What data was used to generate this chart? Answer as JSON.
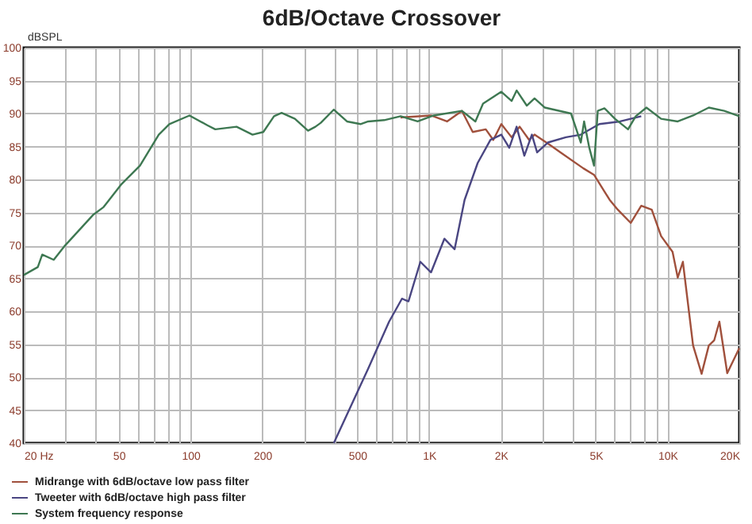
{
  "chart_data": {
    "type": "line",
    "title": "6dB/Octave Crossover",
    "ylabel": "dBSPL",
    "log": "x",
    "grid": true,
    "legend": "bottom",
    "marker": "none",
    "line_style": "solid",
    "xlim": [
      20,
      20000
    ],
    "ylim": [
      40,
      100
    ],
    "xticks": [
      {
        "value": 20,
        "label": "20 Hz"
      },
      {
        "value": 30,
        "label": null
      },
      {
        "value": 40,
        "label": null
      },
      50,
      {
        "value": 60,
        "label": null
      },
      {
        "value": 70,
        "label": null
      },
      {
        "value": 80,
        "label": null
      },
      {
        "value": 90,
        "label": null
      },
      100,
      200,
      {
        "value": 300,
        "label": null
      },
      {
        "value": 400,
        "label": null
      },
      500,
      {
        "value": 600,
        "label": null
      },
      {
        "value": 700,
        "label": null
      },
      {
        "value": 800,
        "label": null
      },
      {
        "value": 900,
        "label": null
      },
      {
        "value": 1000,
        "label": "1K"
      },
      {
        "value": 2000,
        "label": "2K"
      },
      {
        "value": 3000,
        "label": null
      },
      {
        "value": 4000,
        "label": null
      },
      {
        "value": 5000,
        "label": "5K"
      },
      {
        "value": 6000,
        "label": null
      },
      {
        "value": 7000,
        "label": null
      },
      {
        "value": 8000,
        "label": null
      },
      {
        "value": 9000,
        "label": null
      },
      {
        "value": 10000,
        "label": "10K"
      },
      {
        "value": 20000,
        "label": "20K"
      }
    ],
    "yticks": [
      40,
      45,
      50,
      55,
      60,
      65,
      70,
      75,
      80,
      85,
      90,
      95,
      100
    ],
    "series": [
      {
        "name": "Midrange with 6dB/octave low pass filter",
        "color": "#a0503c",
        "x": [
          760,
          1020,
          1190,
          1374,
          1525,
          1730,
          1860,
          2010,
          2220,
          2400,
          2630,
          2770,
          3220,
          3560,
          4430,
          4920,
          5720,
          6190,
          7010,
          7760,
          8590,
          9400,
          10500,
          11040,
          11600,
          12800,
          13900,
          14900,
          15700,
          16500,
          17800,
          20000
        ],
        "values": [
          89.4,
          89.7,
          88.8,
          90.4,
          87.2,
          87.6,
          86,
          88.4,
          86.4,
          88,
          86,
          86.8,
          85.2,
          84.1,
          81.7,
          80.7,
          76.9,
          75.4,
          73.4,
          76,
          75.4,
          71.4,
          69,
          65.1,
          67.5,
          54.8,
          50.5,
          54.8,
          55.6,
          58.4,
          50.6,
          54.4
        ]
      },
      {
        "name": "Tweeter with 6dB/octave high pass filter",
        "color": "#4a4682",
        "x": [
          399,
          556,
          680,
          770,
          820,
          920,
          1020,
          1160,
          1280,
          1410,
          1600,
          1810,
          2010,
          2170,
          2330,
          2510,
          2700,
          2840,
          3150,
          3750,
          4330,
          5180,
          6330,
          7760
        ],
        "values": [
          40,
          51.3,
          58.4,
          61.9,
          61.5,
          67.5,
          65.9,
          71,
          69.4,
          76.9,
          82.5,
          86,
          86.8,
          84.8,
          88,
          83.6,
          86.8,
          84.1,
          85.6,
          86.4,
          86.8,
          88.4,
          88.8,
          89.6
        ]
      },
      {
        "name": "System frequency response",
        "color": "#3e7852",
        "x": [
          20,
          22.9,
          23.9,
          26.7,
          29.5,
          39,
          43.2,
          51.4,
          61.4,
          73.6,
          81.5,
          99,
          118,
          127,
          156,
          182,
          202,
          224,
          241,
          274,
          311,
          334,
          352,
          399,
          453,
          516,
          556,
          649,
          760,
          896,
          1046,
          1374,
          1565,
          1685,
          2010,
          2220,
          2330,
          2570,
          2770,
          3060,
          3940,
          4330,
          4470,
          4700,
          4920,
          5100,
          5440,
          6020,
          6830,
          7360,
          8160,
          9400,
          11040,
          12800,
          14900,
          17300,
          20000
        ],
        "values": [
          65.5,
          66.7,
          68.6,
          67.8,
          69.8,
          74.6,
          75.8,
          79.3,
          82.1,
          86.8,
          88.4,
          89.7,
          88.2,
          87.6,
          88,
          86.8,
          87.2,
          89.6,
          90.1,
          89.2,
          87.4,
          88,
          88.6,
          90.6,
          88.8,
          88.4,
          88.8,
          89,
          89.6,
          88.8,
          89.7,
          90.4,
          88.8,
          91.5,
          93.3,
          91.9,
          93.5,
          91.2,
          92.3,
          90.9,
          90,
          85.6,
          88.8,
          84.8,
          82.1,
          90.4,
          90.8,
          89.2,
          87.6,
          89.6,
          90.9,
          89.2,
          88.8,
          89.7,
          90.9,
          90.4,
          89.6
        ]
      }
    ]
  }
}
